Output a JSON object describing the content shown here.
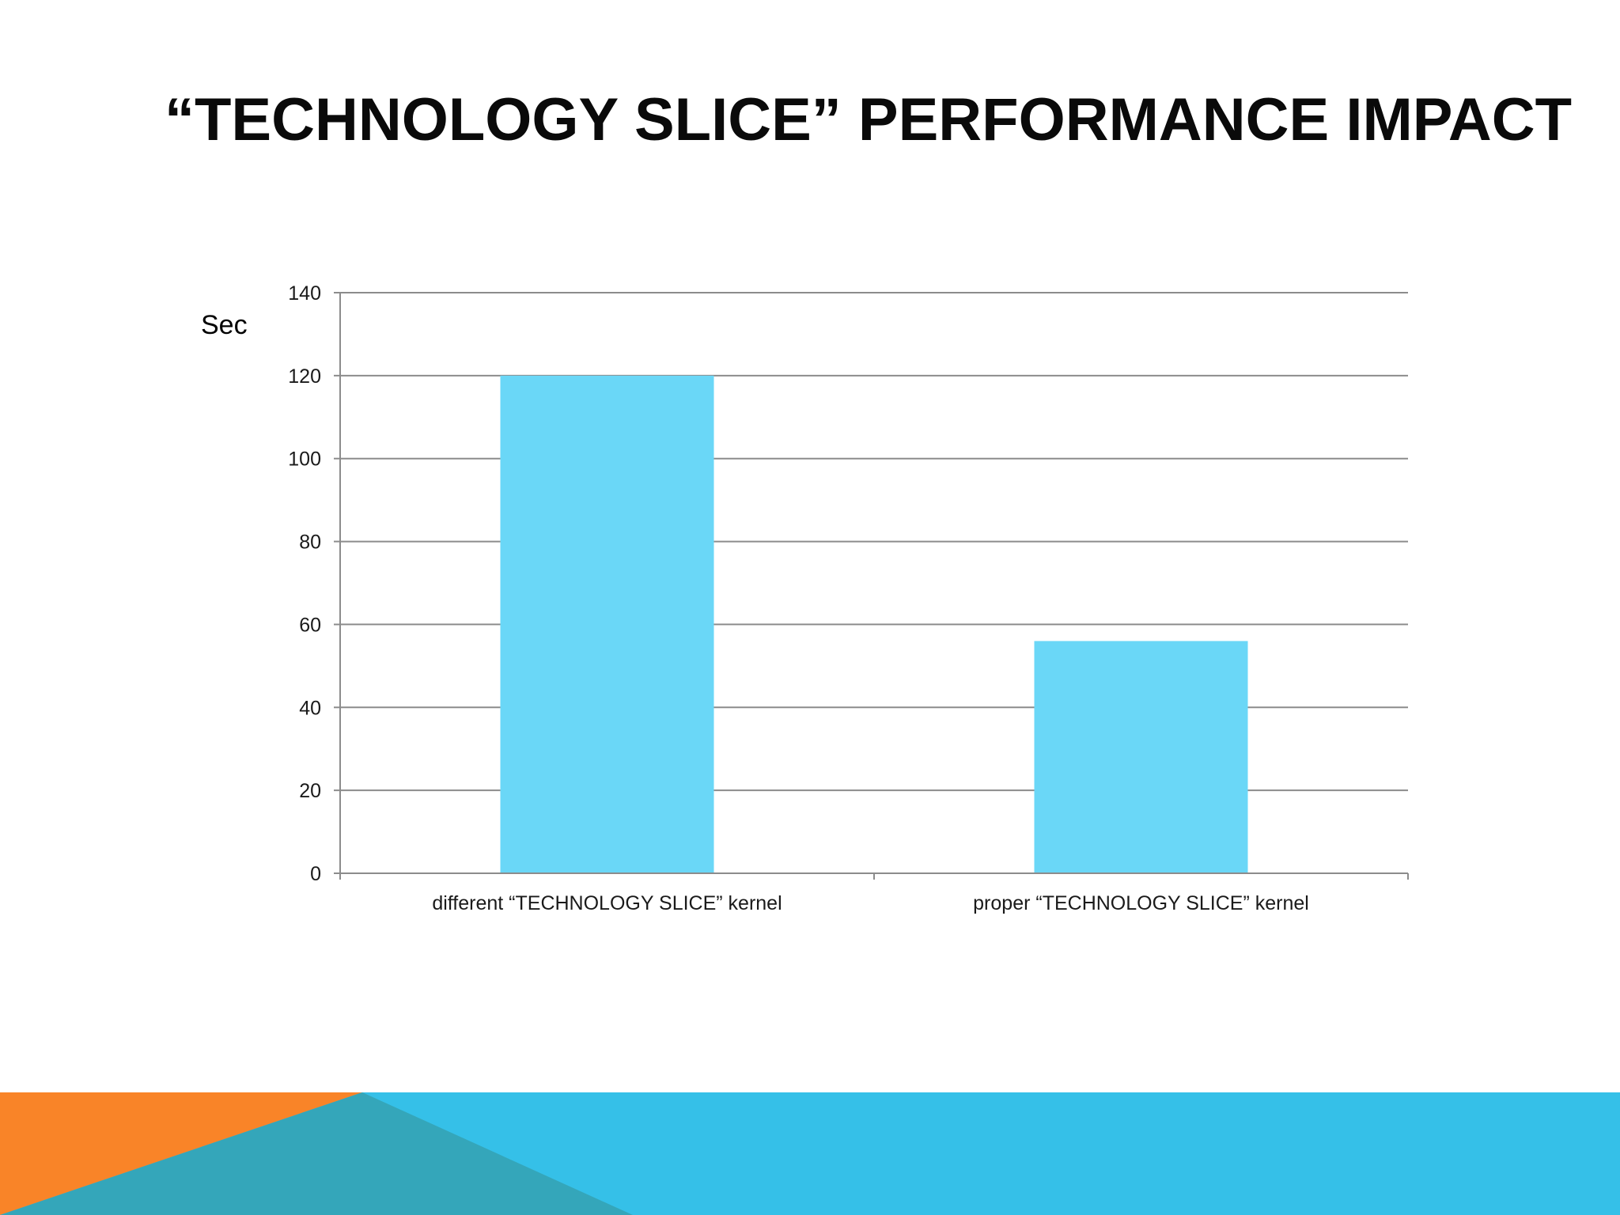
{
  "slide": {
    "title": "“TECHNOLOGY SLICE” PERFORMANCE IMPACT"
  },
  "colors": {
    "bar": "#6ad7f7",
    "grid": "#8c8c8c",
    "footer_blue": "#35c0e8",
    "footer_orange": "#f98428",
    "footer_teal": "#34a6ba"
  },
  "chart_data": {
    "type": "bar",
    "title": "",
    "xlabel": "",
    "ylabel": "Sec",
    "categories": [
      "different “TECHNOLOGY SLICE” kernel",
      "proper “TECHNOLOGY SLICE” kernel"
    ],
    "values": [
      120,
      56
    ],
    "ylim": [
      0,
      140
    ],
    "yticks": [
      "0",
      "20",
      "40",
      "60",
      "80",
      "100",
      "120",
      "140"
    ],
    "grid": true,
    "legend": "none"
  }
}
